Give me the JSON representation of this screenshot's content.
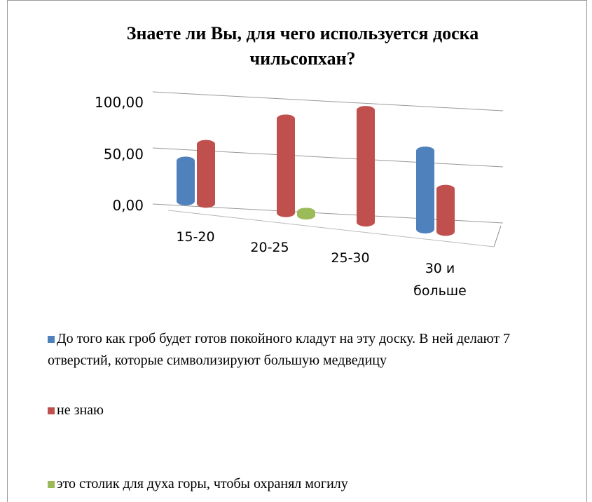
{
  "chart_data": {
    "type": "bar3d",
    "title": "Знаете ли Вы, для чего используется доска чильсопхан?",
    "categories": [
      "15-20",
      "20-25",
      "25-30",
      "30 и больше"
    ],
    "series": [
      {
        "name": "До того как гроб будет готов покойного кладут на эту доску. В ней делают 7 отверстий, которые символизируют большую медведицу",
        "color": "#4f81bd",
        "values": [
          36,
          0,
          0,
          70
        ]
      },
      {
        "name": "не знаю",
        "color": "#c0504d",
        "values": [
          53,
          84,
          100,
          38
        ]
      },
      {
        "name": "это столик для духа горы, чтобы охранял могилу",
        "color": "#9bbb59",
        "values": [
          0,
          3,
          0,
          0
        ]
      }
    ],
    "ylim": [
      0,
      100
    ],
    "yticks": [
      {
        "value": 0,
        "label": "0,00"
      },
      {
        "value": 50,
        "label": "50,00"
      },
      {
        "value": 100,
        "label": "100,00"
      }
    ],
    "grid": true,
    "legend": "bottom"
  }
}
